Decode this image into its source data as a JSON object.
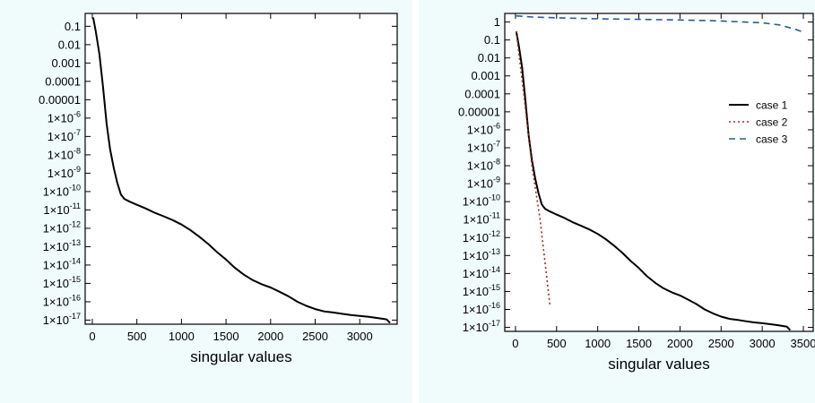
{
  "chart_data": [
    {
      "type": "line",
      "xlabel": "singular values",
      "ylabel": "",
      "yscale": "log",
      "xlim": [
        -80,
        3420
      ],
      "ylim": [
        6e-18,
        0.5
      ],
      "xticks": [
        0,
        500,
        1000,
        1500,
        2000,
        2500,
        3000
      ],
      "yticks": [
        {
          "value": 0.1,
          "label": "0.1"
        },
        {
          "value": 0.01,
          "label": "0.01"
        },
        {
          "value": 0.001,
          "label": "0.001"
        },
        {
          "value": 0.0001,
          "label": "0.0001"
        },
        {
          "value": 1e-05,
          "label": "0.00001"
        },
        {
          "value": 1e-06,
          "label": "1×10",
          "exp": "-6"
        },
        {
          "value": 1e-07,
          "label": "1×10",
          "exp": "-7"
        },
        {
          "value": 1e-08,
          "label": "1×10",
          "exp": "-8"
        },
        {
          "value": 1e-09,
          "label": "1×10",
          "exp": "-9"
        },
        {
          "value": 1e-10,
          "label": "1×10",
          "exp": "-10"
        },
        {
          "value": 1e-11,
          "label": "1×10",
          "exp": "-11"
        },
        {
          "value": 1e-12,
          "label": "1×10",
          "exp": "-12"
        },
        {
          "value": 1e-13,
          "label": "1×10",
          "exp": "-13"
        },
        {
          "value": 1e-14,
          "label": "1×10",
          "exp": "-14"
        },
        {
          "value": 1e-15,
          "label": "1×10",
          "exp": "-15"
        },
        {
          "value": 1e-16,
          "label": "1×10",
          "exp": "-16"
        },
        {
          "value": 1e-17,
          "label": "1×10",
          "exp": "-17"
        }
      ],
      "grid": false,
      "series": [
        {
          "name": "",
          "color": "#000000",
          "dash": "solid",
          "x": [
            10,
            40,
            80,
            120,
            160,
            200,
            240,
            280,
            320,
            360,
            420,
            500,
            600,
            700,
            800,
            900,
            1000,
            1100,
            1200,
            1300,
            1400,
            1500,
            1600,
            1700,
            1800,
            1900,
            2000,
            2100,
            2200,
            2300,
            2400,
            2500,
            2600,
            2700,
            2800,
            2900,
            3000,
            3100,
            3200,
            3300,
            3340
          ],
          "y": [
            0.3,
            0.05,
            0.003,
            5e-05,
            5e-07,
            2e-08,
            2e-09,
            3e-10,
            7e-11,
            4e-11,
            2.8e-11,
            1.9e-11,
            1.2e-11,
            7e-12,
            4.5e-12,
            2.8e-12,
            1.6e-12,
            8e-13,
            3.5e-13,
            1.4e-13,
            5e-14,
            2e-14,
            7e-15,
            3e-15,
            1.5e-15,
            9e-16,
            6e-16,
            3.5e-16,
            2e-16,
            1e-16,
            6e-17,
            4e-17,
            3e-17,
            2.6e-17,
            2.2e-17,
            1.9e-17,
            1.7e-17,
            1.5e-17,
            1.3e-17,
            1.1e-17,
            7e-18
          ]
        }
      ]
    },
    {
      "type": "line",
      "xlabel": "singular values",
      "ylabel": "",
      "yscale": "log",
      "xlim": [
        -130,
        3620
      ],
      "ylim": [
        6e-18,
        3
      ],
      "xticks": [
        0,
        500,
        1000,
        1500,
        2000,
        2500,
        3000,
        3500
      ],
      "yticks": [
        {
          "value": 1,
          "label": "1"
        },
        {
          "value": 0.1,
          "label": "0.1"
        },
        {
          "value": 0.01,
          "label": "0.01"
        },
        {
          "value": 0.001,
          "label": "0.001"
        },
        {
          "value": 0.0001,
          "label": "0.0001"
        },
        {
          "value": 1e-05,
          "label": "0.00001"
        },
        {
          "value": 1e-06,
          "label": "1×10",
          "exp": "-6"
        },
        {
          "value": 1e-07,
          "label": "1×10",
          "exp": "-7"
        },
        {
          "value": 1e-08,
          "label": "1×10",
          "exp": "-8"
        },
        {
          "value": 1e-09,
          "label": "1×10",
          "exp": "-9"
        },
        {
          "value": 1e-10,
          "label": "1×10",
          "exp": "-10"
        },
        {
          "value": 1e-11,
          "label": "1×10",
          "exp": "-11"
        },
        {
          "value": 1e-12,
          "label": "1×10",
          "exp": "-12"
        },
        {
          "value": 1e-13,
          "label": "1×10",
          "exp": "-13"
        },
        {
          "value": 1e-14,
          "label": "1×10",
          "exp": "-14"
        },
        {
          "value": 1e-15,
          "label": "1×10",
          "exp": "-15"
        },
        {
          "value": 1e-16,
          "label": "1×10",
          "exp": "-16"
        },
        {
          "value": 1e-17,
          "label": "1×10",
          "exp": "-17"
        }
      ],
      "grid": false,
      "legend_position": "right",
      "series": [
        {
          "name": "case 1",
          "color": "#000000",
          "dash": "solid",
          "x": [
            10,
            40,
            80,
            120,
            160,
            200,
            240,
            280,
            320,
            360,
            420,
            500,
            600,
            700,
            800,
            900,
            1000,
            1100,
            1200,
            1300,
            1400,
            1500,
            1600,
            1700,
            1800,
            1900,
            2000,
            2100,
            2200,
            2300,
            2400,
            2500,
            2600,
            2700,
            2800,
            2900,
            3000,
            3100,
            3200,
            3300,
            3340
          ],
          "y": [
            0.3,
            0.05,
            0.003,
            5e-05,
            5e-07,
            2e-08,
            2e-09,
            3e-10,
            7e-11,
            4e-11,
            2.8e-11,
            1.9e-11,
            1.2e-11,
            7e-12,
            4.5e-12,
            2.8e-12,
            1.6e-12,
            8e-13,
            3.5e-13,
            1.4e-13,
            5e-14,
            2e-14,
            7e-15,
            3e-15,
            1.5e-15,
            9e-16,
            6e-16,
            3.5e-16,
            2e-16,
            1e-16,
            6e-17,
            4e-17,
            3e-17,
            2.6e-17,
            2.2e-17,
            1.9e-17,
            1.7e-17,
            1.5e-17,
            1.3e-17,
            1.1e-17,
            7e-18
          ]
        },
        {
          "name": "case 2",
          "color": "#b22222",
          "dash": "dotted",
          "x": [
            10,
            100,
            200,
            300,
            420
          ],
          "y": [
            0.3,
            0.0001,
            1e-08,
            1e-11,
            1.5e-16
          ]
        },
        {
          "name": "case 3",
          "color": "#1f5fa0",
          "dash": "dashed",
          "x": [
            10,
            200,
            500,
            1000,
            1500,
            2000,
            2500,
            3000,
            3200,
            3400,
            3520
          ],
          "y": [
            2.2,
            1.9,
            1.7,
            1.5,
            1.4,
            1.3,
            1.15,
            0.9,
            0.7,
            0.4,
            0.25
          ]
        }
      ]
    }
  ]
}
